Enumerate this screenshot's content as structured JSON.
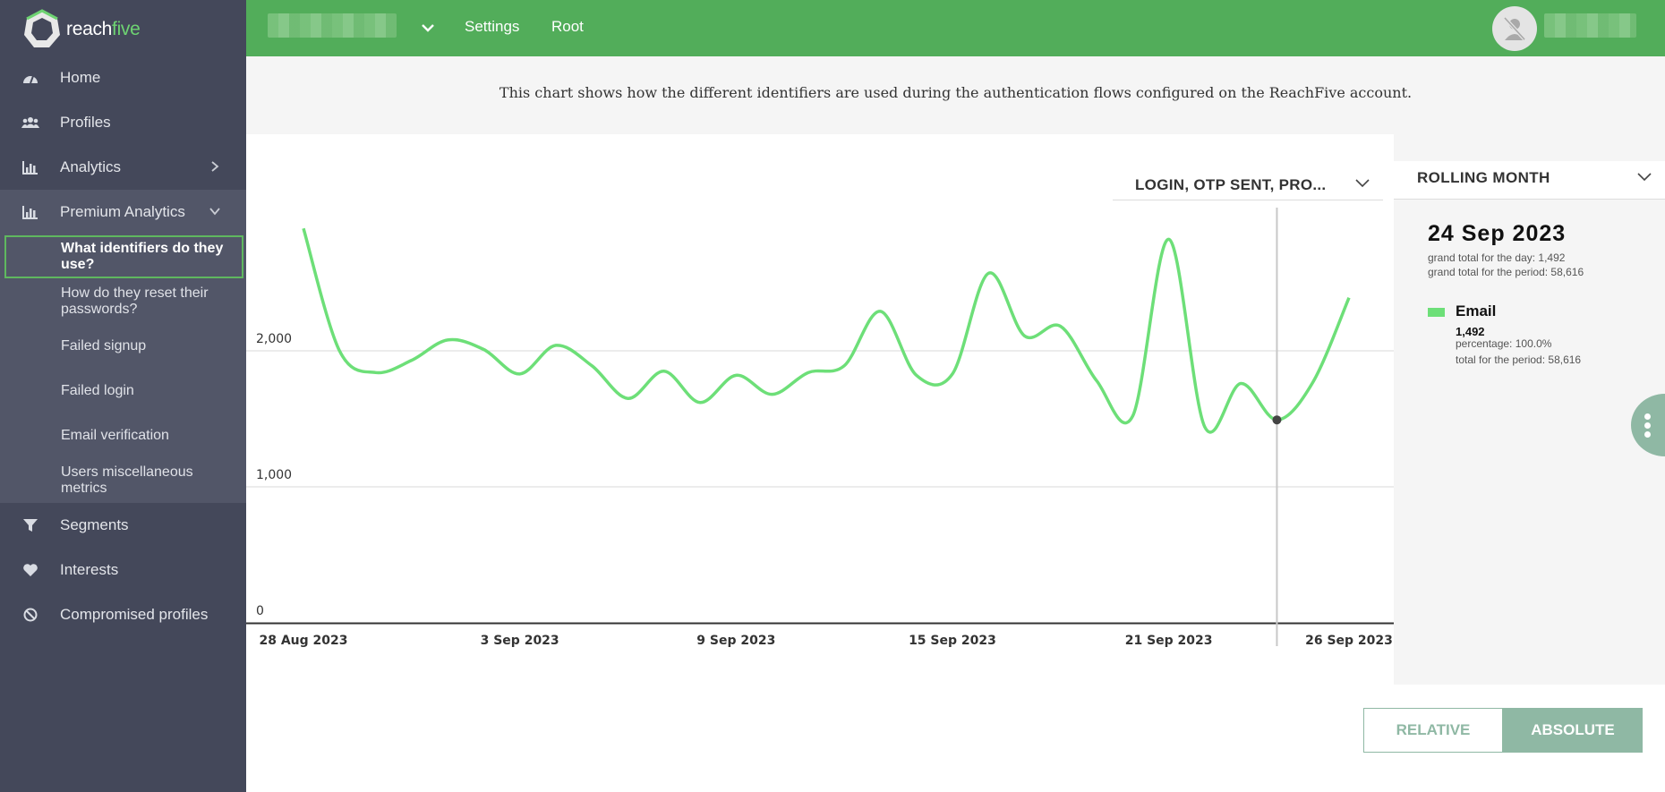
{
  "app": {
    "logo_text_main": "reach",
    "logo_text_accent": "five"
  },
  "sidebar": {
    "items": [
      {
        "label": "Home",
        "icon": "dashboard-gauge-icon"
      },
      {
        "label": "Profiles",
        "icon": "users-group-icon"
      },
      {
        "label": "Analytics",
        "icon": "bar-chart-icon"
      },
      {
        "label": "Premium Analytics",
        "icon": "bar-chart-icon"
      }
    ],
    "premium_sub_items": [
      {
        "label": "What identifiers do they use?",
        "active": true
      },
      {
        "label": "How do they reset their passwords?",
        "active": false
      },
      {
        "label": "Failed signup",
        "active": false
      },
      {
        "label": "Failed login",
        "active": false
      },
      {
        "label": "Email verification",
        "active": false
      },
      {
        "label": "Users miscellaneous metrics",
        "active": false
      }
    ],
    "bottom_items": [
      {
        "label": "Segments",
        "icon": "filter-funnel-icon"
      },
      {
        "label": "Interests",
        "icon": "heart-icon"
      },
      {
        "label": "Compromised profiles",
        "icon": "ban-circle-icon"
      }
    ]
  },
  "topbar": {
    "settings_label": "Settings",
    "root_label": "Root"
  },
  "banner": {
    "text": "This chart shows how the different identifiers are used during the authentication flows configured on the ReachFive account."
  },
  "filters": {
    "event_select": "LOGIN, OTP SENT, PRO...",
    "period_select": "ROLLING MONTH"
  },
  "panel": {
    "date": "24 Sep 2023",
    "grand_total_day": "grand total for the day: 1,492",
    "grand_total_period": "grand total for the period: 58,616",
    "legend_name": "Email",
    "legend_value": "1,492",
    "legend_percentage": "percentage: 100.0%",
    "legend_total_period": "total for the period: 58,616"
  },
  "toggle": {
    "relative_label": "RELATIVE",
    "absolute_label": "ABSOLUTE",
    "selected": "absolute"
  },
  "colors": {
    "topbar": "#52ad5a",
    "sidebar": "#44485a",
    "series": "#6ddf78",
    "toggle_accent": "#8fb8a4"
  },
  "chart_data": {
    "type": "line",
    "x_tick_labels": [
      "28 Aug 2023",
      "3 Sep 2023",
      "9 Sep 2023",
      "15 Sep 2023",
      "21 Sep 2023",
      "26 Sep 2023"
    ],
    "y_tick_labels": [
      "0",
      "1,000",
      "2,000"
    ],
    "ylim": [
      0,
      2800
    ],
    "series": [
      {
        "name": "Email",
        "x": [
          "28 Aug 2023",
          "29 Aug 2023",
          "30 Aug 2023",
          "31 Aug 2023",
          "1 Sep 2023",
          "2 Sep 2023",
          "3 Sep 2023",
          "4 Sep 2023",
          "5 Sep 2023",
          "6 Sep 2023",
          "7 Sep 2023",
          "8 Sep 2023",
          "9 Sep 2023",
          "10 Sep 2023",
          "11 Sep 2023",
          "12 Sep 2023",
          "13 Sep 2023",
          "14 Sep 2023",
          "15 Sep 2023",
          "16 Sep 2023",
          "17 Sep 2023",
          "18 Sep 2023",
          "19 Sep 2023",
          "20 Sep 2023",
          "21 Sep 2023",
          "22 Sep 2023",
          "23 Sep 2023",
          "24 Sep 2023",
          "25 Sep 2023",
          "26 Sep 2023"
        ],
        "values": [
          2900,
          2000,
          1840,
          1930,
          2080,
          2010,
          1830,
          2040,
          1890,
          1650,
          1850,
          1620,
          1820,
          1680,
          1840,
          1890,
          2290,
          1820,
          1830,
          2570,
          2110,
          2180,
          1780,
          1520,
          2820,
          1440,
          1760,
          1492,
          1770,
          2390
        ]
      }
    ],
    "highlight": {
      "x": "24 Sep 2023",
      "value": 1492
    }
  }
}
